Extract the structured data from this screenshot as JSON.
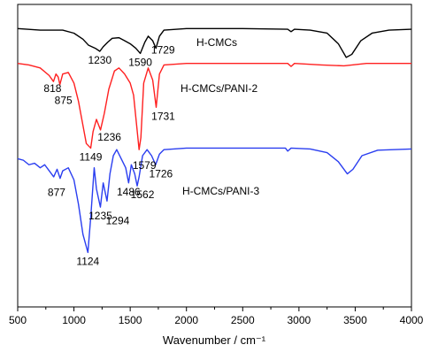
{
  "chart_data": {
    "type": "line",
    "xlabel": "Wavenumber / cm⁻¹",
    "ylabel": "",
    "xlim": [
      500,
      4000
    ],
    "xticks": [
      "500",
      "1000",
      "1500",
      "2000",
      "2500",
      "3000",
      "3500",
      "4000"
    ],
    "x_tick_values": [
      500,
      1000,
      1500,
      2000,
      2500,
      3000,
      3500,
      4000
    ],
    "ylim": [
      0,
      1
    ],
    "yticks_visible": false,
    "grid": false,
    "series": [
      {
        "name": "H-CMCs",
        "color": "#000000",
        "points": [
          [
            500,
            0.92
          ],
          [
            700,
            0.915
          ],
          [
            900,
            0.915
          ],
          [
            1000,
            0.905
          ],
          [
            1080,
            0.885
          ],
          [
            1130,
            0.865
          ],
          [
            1190,
            0.855
          ],
          [
            1230,
            0.845
          ],
          [
            1260,
            0.86
          ],
          [
            1300,
            0.875
          ],
          [
            1340,
            0.888
          ],
          [
            1400,
            0.89
          ],
          [
            1450,
            0.88
          ],
          [
            1500,
            0.87
          ],
          [
            1550,
            0.855
          ],
          [
            1590,
            0.838
          ],
          [
            1630,
            0.875
          ],
          [
            1660,
            0.895
          ],
          [
            1700,
            0.88
          ],
          [
            1729,
            0.855
          ],
          [
            1760,
            0.895
          ],
          [
            1800,
            0.915
          ],
          [
            2000,
            0.92
          ],
          [
            2500,
            0.92
          ],
          [
            2900,
            0.918
          ],
          [
            2930,
            0.91
          ],
          [
            2960,
            0.918
          ],
          [
            3100,
            0.915
          ],
          [
            3250,
            0.905
          ],
          [
            3350,
            0.87
          ],
          [
            3420,
            0.825
          ],
          [
            3470,
            0.835
          ],
          [
            3550,
            0.88
          ],
          [
            3650,
            0.905
          ],
          [
            3800,
            0.915
          ],
          [
            4000,
            0.918
          ]
        ],
        "peak_labels": [
          {
            "text": "1230",
            "x": 1230
          },
          {
            "text": "1590",
            "x": 1590
          },
          {
            "text": "1729",
            "x": 1729
          }
        ]
      },
      {
        "name": "H-CMCs/PANI-2",
        "color": "#ff2020",
        "points": [
          [
            500,
            0.805
          ],
          [
            600,
            0.8
          ],
          [
            700,
            0.79
          ],
          [
            780,
            0.765
          ],
          [
            818,
            0.745
          ],
          [
            840,
            0.77
          ],
          [
            860,
            0.76
          ],
          [
            875,
            0.735
          ],
          [
            900,
            0.77
          ],
          [
            950,
            0.775
          ],
          [
            1000,
            0.74
          ],
          [
            1040,
            0.68
          ],
          [
            1080,
            0.6
          ],
          [
            1110,
            0.54
          ],
          [
            1149,
            0.525
          ],
          [
            1170,
            0.58
          ],
          [
            1200,
            0.62
          ],
          [
            1236,
            0.585
          ],
          [
            1270,
            0.64
          ],
          [
            1310,
            0.72
          ],
          [
            1360,
            0.78
          ],
          [
            1400,
            0.79
          ],
          [
            1450,
            0.77
          ],
          [
            1500,
            0.74
          ],
          [
            1530,
            0.7
          ],
          [
            1560,
            0.59
          ],
          [
            1579,
            0.52
          ],
          [
            1595,
            0.56
          ],
          [
            1620,
            0.74
          ],
          [
            1660,
            0.79
          ],
          [
            1700,
            0.75
          ],
          [
            1731,
            0.66
          ],
          [
            1760,
            0.77
          ],
          [
            1800,
            0.8
          ],
          [
            2000,
            0.805
          ],
          [
            2500,
            0.805
          ],
          [
            2900,
            0.805
          ],
          [
            2930,
            0.795
          ],
          [
            2960,
            0.805
          ],
          [
            3200,
            0.8
          ],
          [
            3400,
            0.797
          ],
          [
            3600,
            0.805
          ],
          [
            4000,
            0.805
          ]
        ],
        "peak_labels": [
          {
            "text": "818",
            "x": 818
          },
          {
            "text": "875",
            "x": 875
          },
          {
            "text": "1731",
            "x": 1731
          },
          {
            "text": "1236",
            "x": 1236
          },
          {
            "text": "1149",
            "x": 1149
          }
        ]
      },
      {
        "name": "H-CMCs/PANI-3",
        "color": "#2a3ef0",
        "points": [
          [
            500,
            0.49
          ],
          [
            550,
            0.485
          ],
          [
            600,
            0.47
          ],
          [
            650,
            0.475
          ],
          [
            700,
            0.46
          ],
          [
            740,
            0.47
          ],
          [
            780,
            0.45
          ],
          [
            820,
            0.43
          ],
          [
            850,
            0.455
          ],
          [
            877,
            0.425
          ],
          [
            900,
            0.45
          ],
          [
            950,
            0.46
          ],
          [
            1000,
            0.42
          ],
          [
            1040,
            0.34
          ],
          [
            1080,
            0.24
          ],
          [
            1124,
            0.18
          ],
          [
            1150,
            0.3
          ],
          [
            1180,
            0.46
          ],
          [
            1200,
            0.39
          ],
          [
            1235,
            0.33
          ],
          [
            1260,
            0.41
          ],
          [
            1294,
            0.35
          ],
          [
            1320,
            0.44
          ],
          [
            1350,
            0.5
          ],
          [
            1380,
            0.52
          ],
          [
            1420,
            0.49
          ],
          [
            1460,
            0.46
          ],
          [
            1486,
            0.41
          ],
          [
            1510,
            0.47
          ],
          [
            1540,
            0.44
          ],
          [
            1562,
            0.4
          ],
          [
            1579,
            0.43
          ],
          [
            1610,
            0.5
          ],
          [
            1650,
            0.52
          ],
          [
            1690,
            0.5
          ],
          [
            1726,
            0.47
          ],
          [
            1760,
            0.505
          ],
          [
            1800,
            0.52
          ],
          [
            2000,
            0.525
          ],
          [
            2500,
            0.525
          ],
          [
            2880,
            0.525
          ],
          [
            2900,
            0.515
          ],
          [
            2930,
            0.525
          ],
          [
            3100,
            0.522
          ],
          [
            3250,
            0.51
          ],
          [
            3350,
            0.48
          ],
          [
            3430,
            0.44
          ],
          [
            3480,
            0.455
          ],
          [
            3560,
            0.5
          ],
          [
            3700,
            0.518
          ],
          [
            4000,
            0.522
          ]
        ],
        "peak_labels": [
          {
            "text": "877",
            "x": 877
          },
          {
            "text": "1235",
            "x": 1235
          },
          {
            "text": "1294",
            "x": 1294
          },
          {
            "text": "1486",
            "x": 1486
          },
          {
            "text": "1562",
            "x": 1562
          },
          {
            "text": "1579",
            "x": 1579
          },
          {
            "text": "1726",
            "x": 1726
          },
          {
            "text": "1124",
            "x": 1124
          }
        ]
      }
    ]
  }
}
